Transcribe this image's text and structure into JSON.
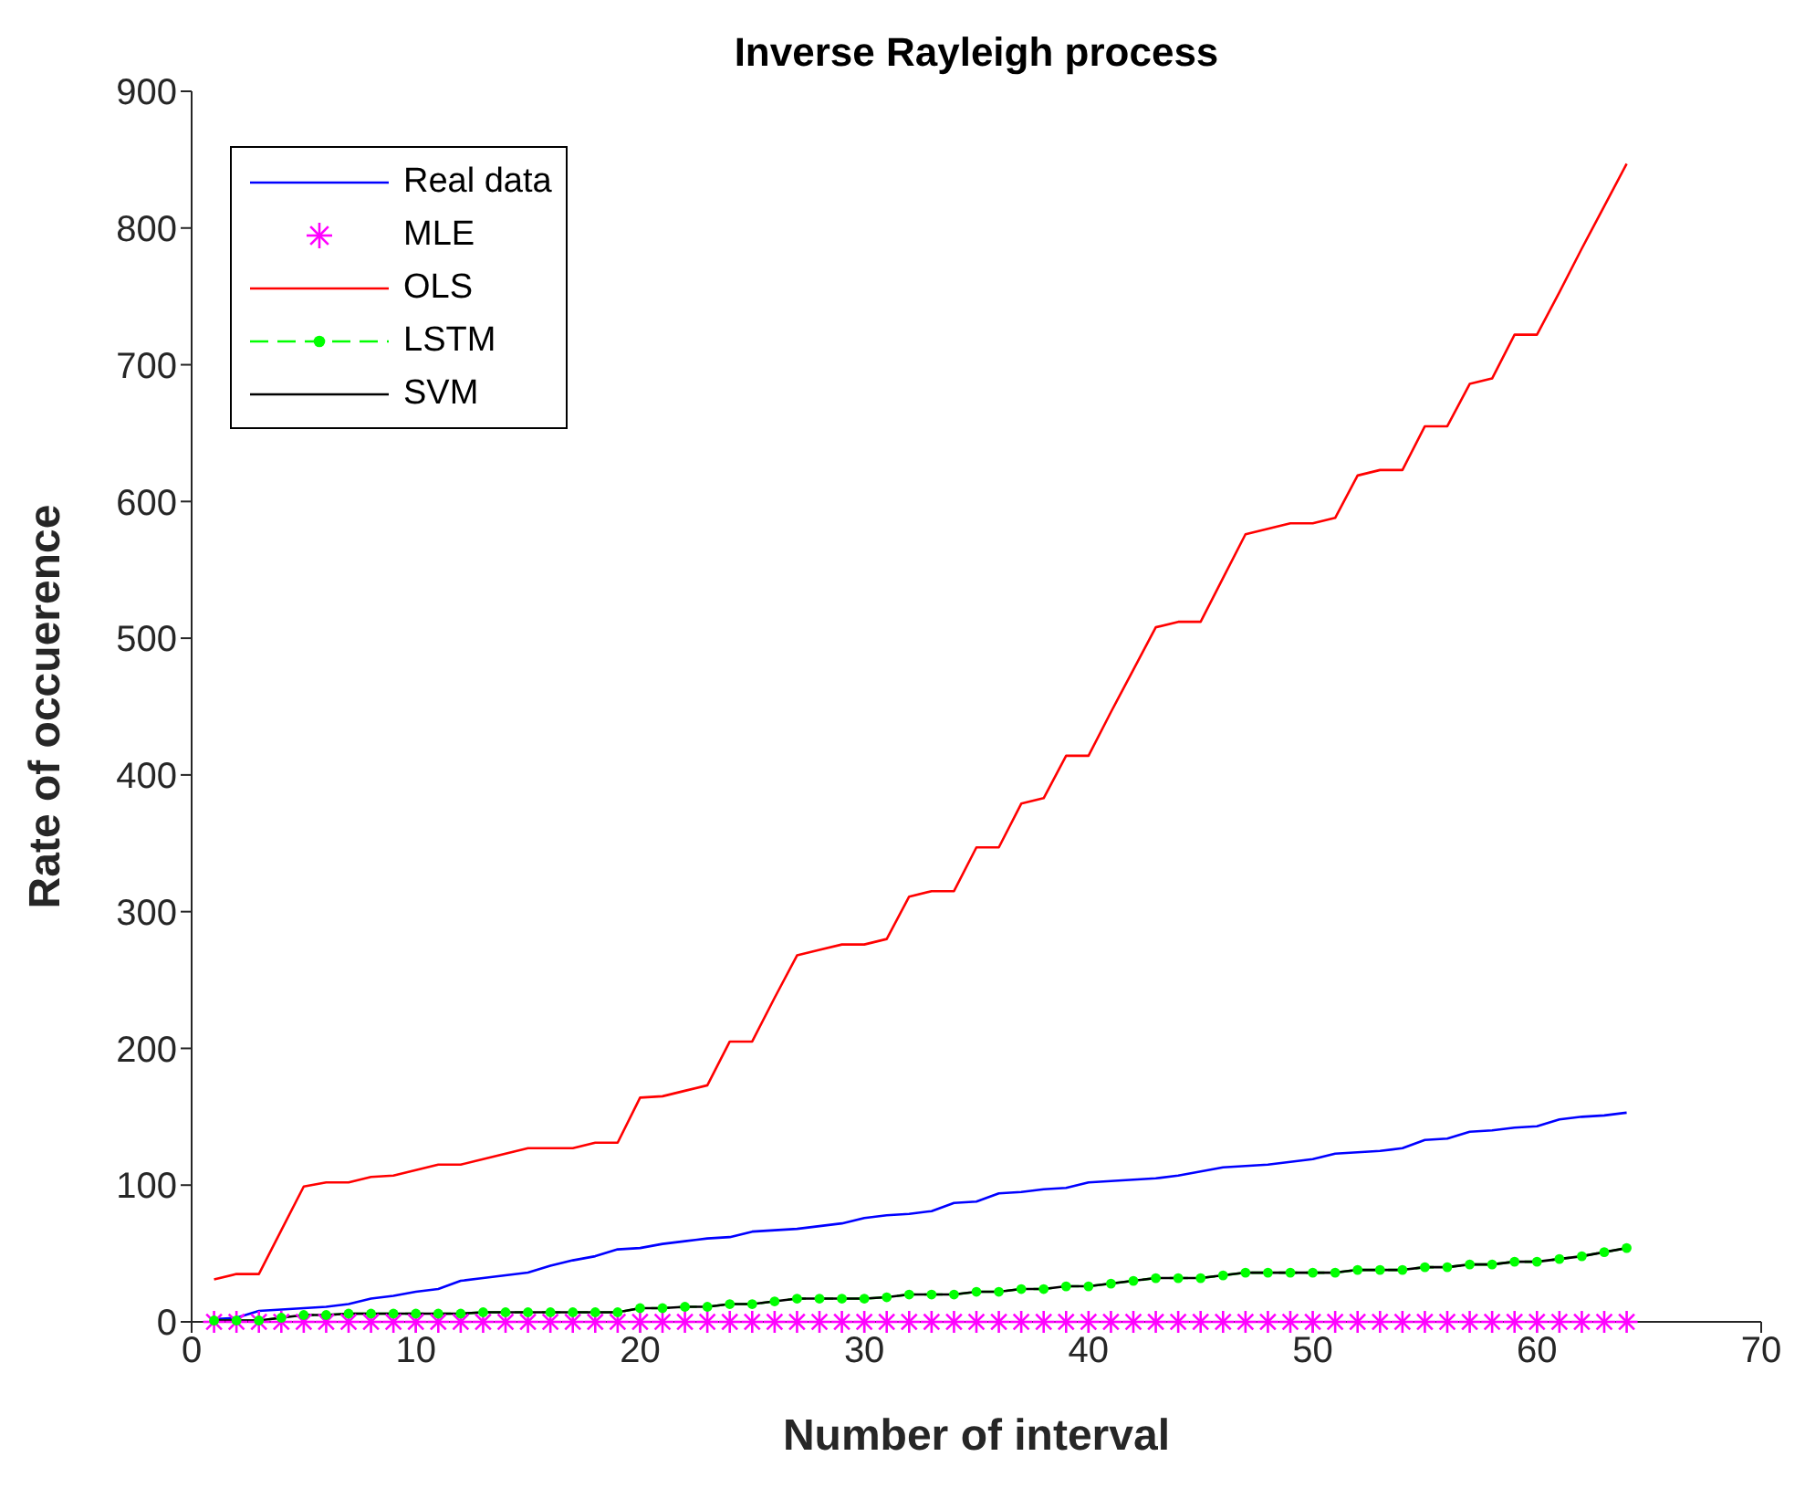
{
  "chart_data": {
    "type": "line",
    "title": "Inverse Rayleigh process",
    "xlabel": "Number of interval",
    "ylabel": "Rate of occuerence",
    "x": [
      1,
      2,
      3,
      4,
      5,
      6,
      7,
      8,
      9,
      10,
      11,
      12,
      13,
      14,
      15,
      16,
      17,
      18,
      19,
      20,
      21,
      22,
      23,
      24,
      25,
      26,
      27,
      28,
      29,
      30,
      31,
      32,
      33,
      34,
      35,
      36,
      37,
      38,
      39,
      40,
      41,
      42,
      43,
      44,
      45,
      46,
      47,
      48,
      49,
      50,
      51,
      52,
      53,
      54,
      55,
      56,
      57,
      58,
      59,
      60,
      61,
      62,
      63,
      64
    ],
    "series": [
      {
        "name": "Real data",
        "color": "#0000ff",
        "marker": "none",
        "line_style": "solid",
        "values": [
          2,
          3,
          8,
          9,
          10,
          11,
          13,
          17,
          19,
          22,
          24,
          30,
          32,
          34,
          36,
          41,
          45,
          48,
          53,
          54,
          57,
          59,
          61,
          62,
          66,
          67,
          68,
          70,
          72,
          76,
          78,
          79,
          81,
          87,
          88,
          94,
          95,
          97,
          98,
          102,
          103,
          104,
          105,
          107,
          110,
          113,
          114,
          115,
          117,
          119,
          123,
          124,
          125,
          127,
          133,
          134,
          139,
          140,
          142,
          143,
          148,
          150,
          151,
          153
        ]
      },
      {
        "name": "MLE",
        "type": "scatter",
        "color": "#ff00ff",
        "marker": "cross",
        "values": [
          0,
          0,
          0,
          0,
          0,
          0,
          0,
          0,
          0,
          0,
          0,
          0,
          0,
          0,
          0,
          0,
          0,
          0,
          0,
          0,
          0,
          0,
          0,
          0,
          0,
          0,
          0,
          0,
          0,
          0,
          0,
          0,
          0,
          0,
          0,
          0,
          0,
          0,
          0,
          0,
          0,
          0,
          0,
          0,
          0,
          0,
          0,
          0,
          0,
          0,
          0,
          0,
          0,
          0,
          0,
          0,
          0,
          0,
          0,
          0,
          0,
          0,
          0,
          0
        ]
      },
      {
        "name": "OLS",
        "color": "#ff0000",
        "marker": "none",
        "line_style": "solid",
        "values": [
          31,
          35,
          35,
          67,
          99,
          102,
          102,
          106,
          107,
          111,
          115,
          115,
          119,
          123,
          127,
          127,
          127,
          131,
          131,
          164,
          165,
          169,
          173,
          205,
          205,
          237,
          268,
          272,
          276,
          276,
          280,
          311,
          315,
          315,
          347,
          347,
          379,
          383,
          414,
          414,
          446,
          477,
          508,
          512,
          512,
          544,
          576,
          580,
          584,
          584,
          588,
          619,
          623,
          623,
          655,
          655,
          686,
          690,
          722,
          722,
          753,
          785,
          816,
          847
        ]
      },
      {
        "name": "LSTM",
        "color": "#00ff00",
        "marker": "circle",
        "line_style": "dashed",
        "values": [
          1,
          1,
          1,
          3,
          5,
          5,
          6,
          6,
          6,
          6,
          6,
          6,
          7,
          7,
          7,
          7,
          7,
          7,
          7,
          10,
          10,
          11,
          11,
          13,
          13,
          15,
          17,
          17,
          17,
          17,
          18,
          20,
          20,
          20,
          22,
          22,
          24,
          24,
          26,
          26,
          28,
          30,
          32,
          32,
          32,
          34,
          36,
          36,
          36,
          36,
          36,
          38,
          38,
          38,
          40,
          40,
          42,
          42,
          44,
          44,
          46,
          48,
          51,
          54
        ]
      },
      {
        "name": "SVM",
        "color": "#000000",
        "marker": "none",
        "line_style": "solid",
        "values": [
          1,
          1,
          1,
          3,
          5,
          5,
          6,
          6,
          6,
          6,
          6,
          6,
          7,
          7,
          7,
          7,
          7,
          7,
          7,
          10,
          10,
          11,
          11,
          13,
          13,
          15,
          17,
          17,
          17,
          17,
          18,
          20,
          20,
          20,
          22,
          22,
          24,
          24,
          26,
          26,
          28,
          30,
          32,
          32,
          32,
          34,
          36,
          36,
          36,
          36,
          36,
          38,
          38,
          38,
          40,
          40,
          42,
          42,
          44,
          44,
          46,
          48,
          51,
          54
        ]
      }
    ],
    "xlim": [
      0,
      70
    ],
    "xticks": [
      0,
      10,
      20,
      30,
      40,
      50,
      60,
      70
    ],
    "ylim": [
      0,
      900
    ],
    "yticks": [
      0,
      100,
      200,
      300,
      400,
      500,
      600,
      700,
      800,
      900
    ],
    "grid": false,
    "legend": "top left"
  }
}
